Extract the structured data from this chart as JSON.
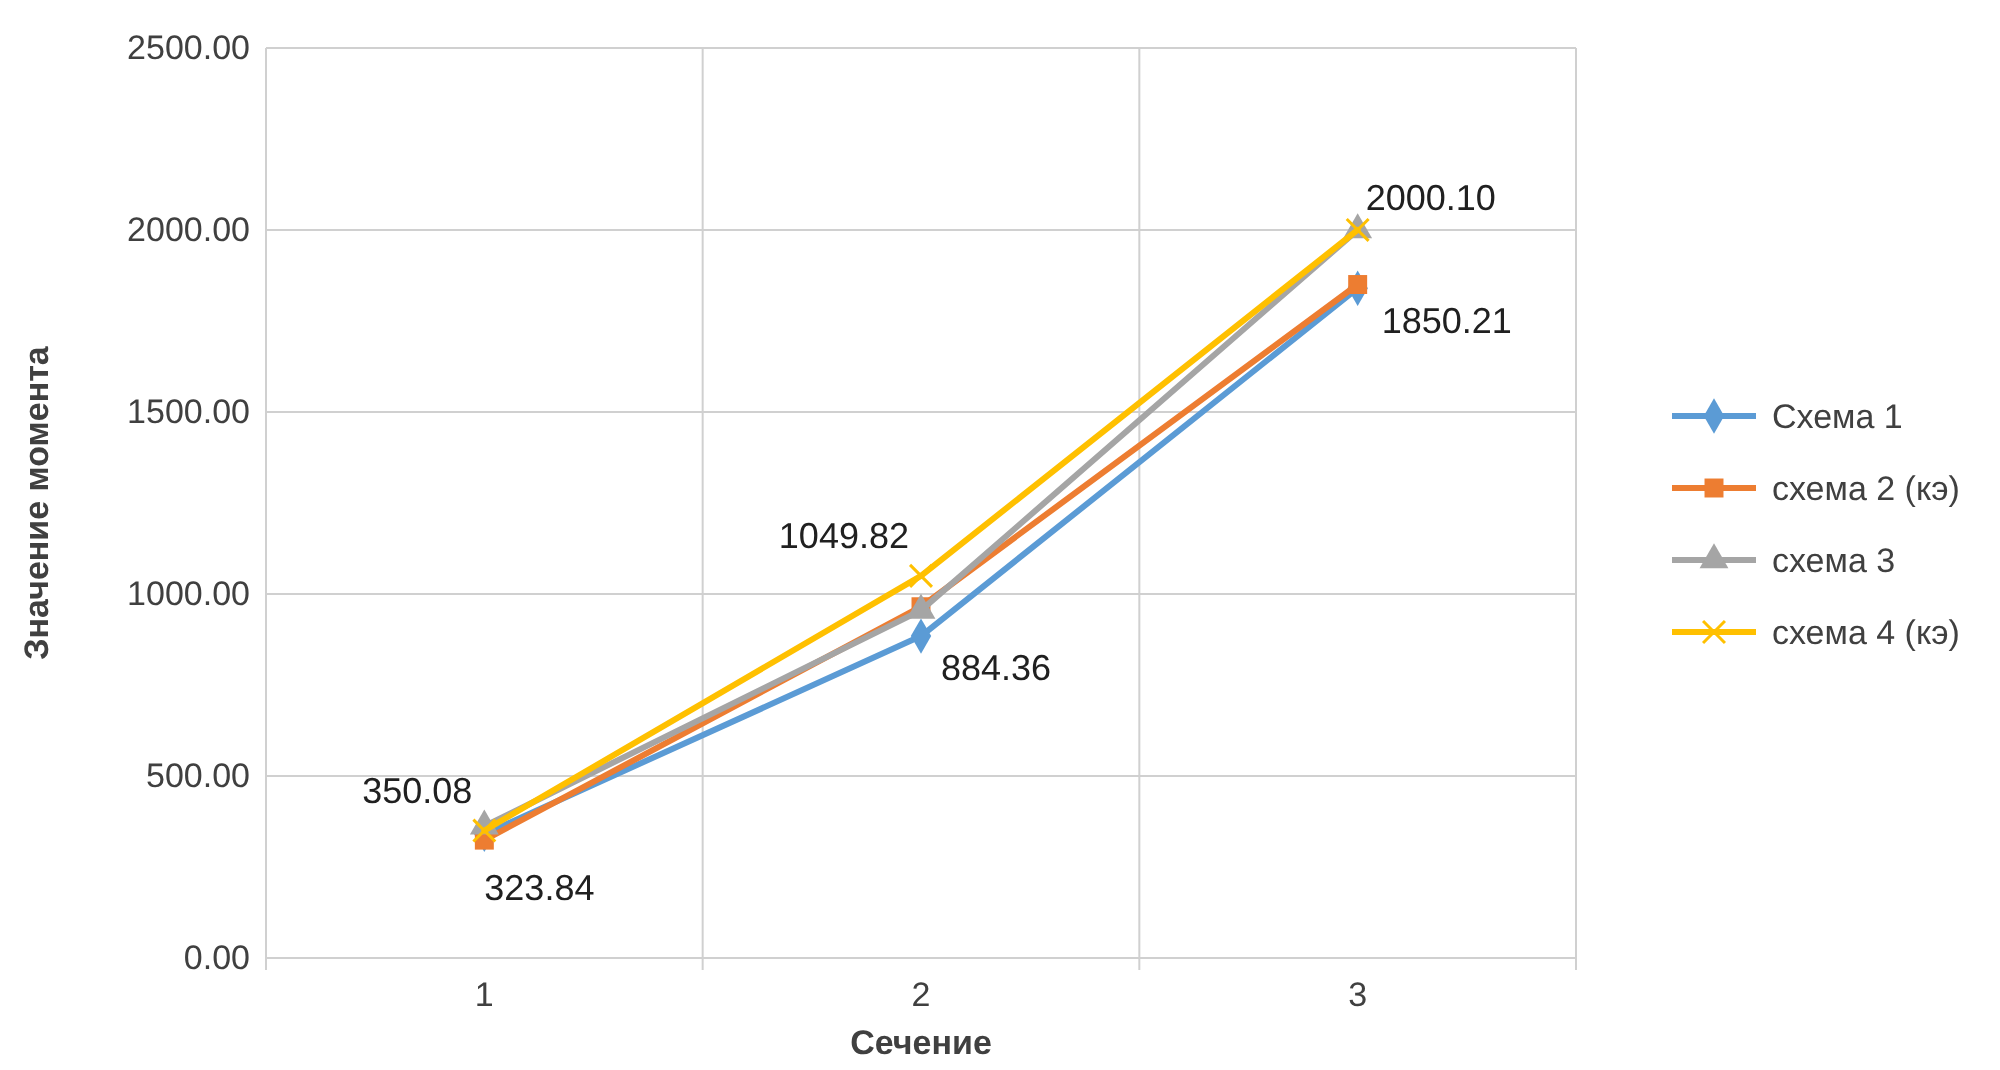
{
  "chart_data": {
    "type": "line",
    "xlabel": "Сечение",
    "ylabel": "Значение момента",
    "categories": [
      "1",
      "2",
      "3"
    ],
    "ylim": [
      0,
      2500
    ],
    "yticks": [
      {
        "value": 0,
        "label": "0.00"
      },
      {
        "value": 500,
        "label": "500.00"
      },
      {
        "value": 1000,
        "label": "1000.00"
      },
      {
        "value": 1500,
        "label": "1500.00"
      },
      {
        "value": 2000,
        "label": "2000.00"
      },
      {
        "value": 2500,
        "label": "2500.00"
      }
    ],
    "grid": true,
    "legend": "right",
    "line_style": "solid",
    "series": [
      {
        "name": "Схема 1",
        "color": "#5b9bd5",
        "marker": "diamond",
        "values": [
          340,
          884.36,
          1840
        ],
        "value_labels": [
          null,
          "884.36",
          null
        ]
      },
      {
        "name": "схема 2 (кэ)",
        "color": "#ed7d31",
        "marker": "square",
        "values": [
          323.84,
          965,
          1850.21
        ],
        "value_labels": [
          "323.84",
          null,
          "1850.21"
        ]
      },
      {
        "name": "схема 3",
        "color": "#a5a5a5",
        "marker": "triangle",
        "values": [
          362,
          955,
          2000
        ],
        "value_labels": [
          null,
          null,
          null
        ]
      },
      {
        "name": "схема 4 (кэ)",
        "color": "#ffc000",
        "marker": "cross",
        "values": [
          350.08,
          1049.82,
          2000.1
        ],
        "value_labels": [
          "350.08",
          "1049.82",
          "2000.10"
        ]
      }
    ]
  }
}
